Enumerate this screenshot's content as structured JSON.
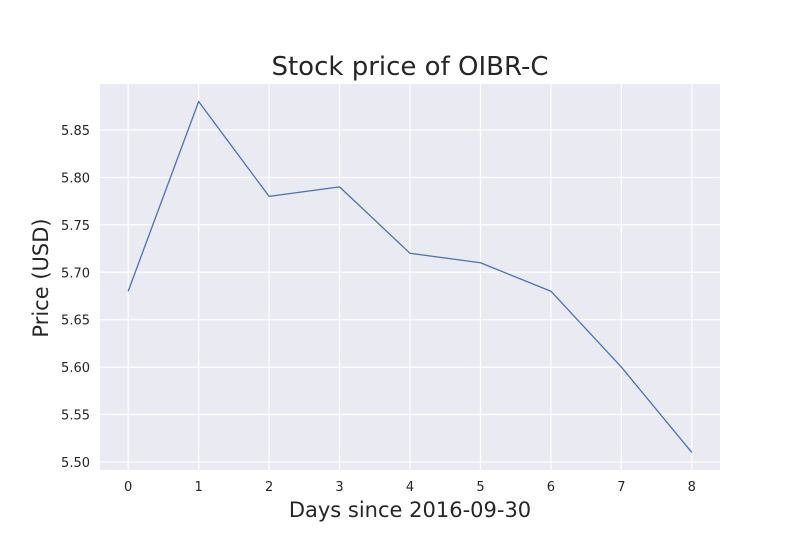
{
  "chart_data": {
    "type": "line",
    "title": "Stock price of OIBR-C",
    "xlabel": "Days since 2016-09-30",
    "ylabel": "Price (USD)",
    "x": [
      0,
      1,
      2,
      3,
      4,
      5,
      6,
      7,
      8
    ],
    "series": [
      {
        "values": [
          5.68,
          5.88,
          5.78,
          5.79,
          5.72,
          5.71,
          5.68,
          5.6,
          5.51
        ]
      }
    ],
    "xlim": [
      -0.4,
      8.4
    ],
    "ylim": [
      5.4915,
      5.8985
    ],
    "xticks": [
      0,
      1,
      2,
      3,
      4,
      5,
      6,
      7,
      8
    ],
    "yticks": [
      5.5,
      5.55,
      5.6,
      5.65,
      5.7,
      5.75,
      5.8,
      5.85
    ],
    "ytick_labels": [
      "5.50",
      "5.55",
      "5.60",
      "5.65",
      "5.70",
      "5.75",
      "5.80",
      "5.85"
    ],
    "grid": true,
    "colors": {
      "line": "#4c72b0",
      "plot_background": "#eaeaf2",
      "grid": "#ffffff"
    }
  }
}
